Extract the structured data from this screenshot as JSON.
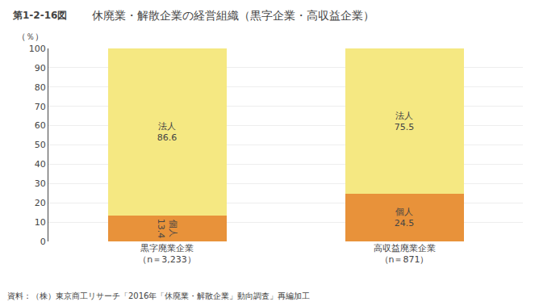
{
  "chart_data": {
    "type": "bar",
    "title": "休廃業・解散企業の経営組織（黒字企業・高収益企業）",
    "ylabel": "（％）",
    "annotations": [
      "第1-2-16図",
      "資料：（株）東京商工リサーチ「2016年「休廃業・解散企業」動向調査」再編加工"
    ],
    "categories": [
      "黒字廃業企業\n（n＝3,233）",
      "高収益廃業企業\n（n＝871）"
    ],
    "series": [
      {
        "name": "個人",
        "color": "#E8923A",
        "values": [
          13.4,
          24.5
        ]
      },
      {
        "name": "法人",
        "color": "#F5E882",
        "values": [
          86.6,
          75.5
        ]
      }
    ],
    "stacked": true,
    "data_labels": true,
    "ylim": [
      0,
      100
    ],
    "yticks": [
      0,
      10,
      20,
      30,
      40,
      50,
      60,
      70,
      80,
      90,
      100
    ],
    "grid": true
  }
}
